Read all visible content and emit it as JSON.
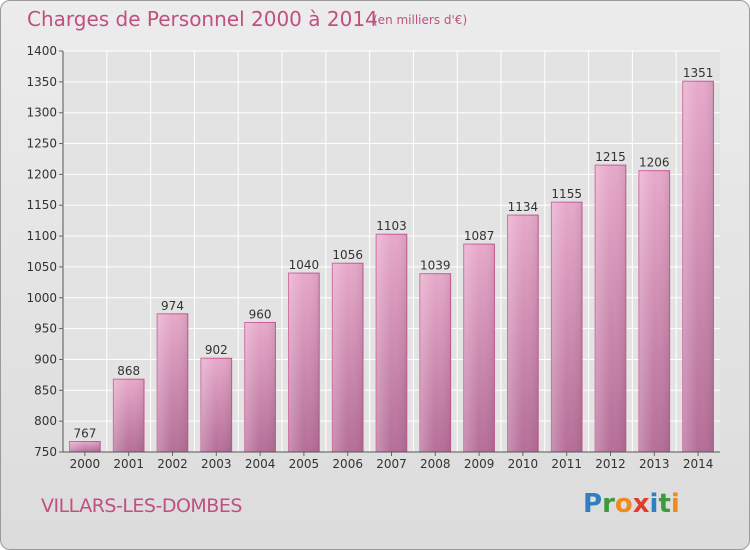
{
  "header": {
    "title": "Charges de Personnel 2000 à 2014",
    "subtitle": "(en milliers d'€)"
  },
  "footer": {
    "city": "VILLARS-LES-DOMBES",
    "logo_letters": [
      "P",
      "r",
      "o",
      "x",
      "i",
      "t",
      "i"
    ],
    "logo_colors": [
      "#2f7fc1",
      "#3e9a3e",
      "#f08a1c",
      "#e33c2e",
      "#2f7fc1",
      "#3e9a3e",
      "#f08a1c"
    ]
  },
  "chart_data": {
    "type": "bar",
    "title": "Charges de Personnel 2000 à 2014",
    "subtitle": "(en milliers d'€)",
    "xlabel": "",
    "ylabel": "",
    "categories": [
      "2000",
      "2001",
      "2002",
      "2003",
      "2004",
      "2005",
      "2006",
      "2007",
      "2008",
      "2009",
      "2010",
      "2011",
      "2012",
      "2013",
      "2014"
    ],
    "values": [
      767,
      868,
      974,
      902,
      960,
      1040,
      1056,
      1103,
      1039,
      1087,
      1134,
      1155,
      1215,
      1206,
      1351
    ],
    "ylim": [
      750,
      1400
    ],
    "yticks": [
      750,
      800,
      850,
      900,
      950,
      1000,
      1050,
      1100,
      1150,
      1200,
      1250,
      1300,
      1350,
      1400
    ],
    "grid": true,
    "bar_color": "#d98fb5",
    "bar_edge_color": "#c85a93"
  }
}
